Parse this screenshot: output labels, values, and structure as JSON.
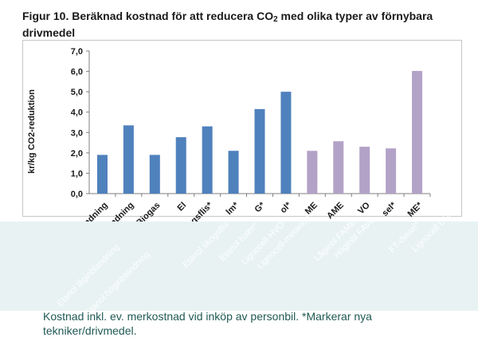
{
  "title": {
    "prefix": "Figur 10. Beräknad kostnad för att reducera CO",
    "subscript": "2",
    "suffix": " med olika typer av förnybara drivmedel"
  },
  "chart_data": {
    "type": "bar",
    "title": "",
    "xlabel": "",
    "ylabel": "kr/kg CO2-reduktion",
    "ylim": [
      0,
      7
    ],
    "yticks": [
      "0,0",
      "1,0",
      "2,0",
      "3,0",
      "4,0",
      "5,0",
      "6,0",
      "7,0"
    ],
    "grid": false,
    "categories": [
      "Etanol låginblandning",
      "Etanol höginblandning",
      "Biogas",
      "El",
      "Etanol skogsflis*",
      "Etanol halm*",
      "Lignocell-HVO*",
      "Lignocell-metanol*",
      "Låginbl FAME",
      "Höginbl FAME",
      "Höginbl HVO",
      "FT-diesel*",
      "Lignocell DME*"
    ],
    "visible_tick_labels": [
      "ndning",
      "landning",
      "Biogas",
      "El",
      "ogsflis*",
      "lm*",
      "G*",
      "ol*",
      "ME",
      "AME",
      "VO",
      "sel*",
      "ME*"
    ],
    "values": [
      1.9,
      3.35,
      1.9,
      2.77,
      3.3,
      2.1,
      4.15,
      5.0,
      2.1,
      2.57,
      2.3,
      2.22,
      6.02
    ],
    "colors": [
      "#4f81bd",
      "#4f81bd",
      "#4f81bd",
      "#4f81bd",
      "#4f81bd",
      "#4f81bd",
      "#4f81bd",
      "#4f81bd",
      "#b3a2c7",
      "#b3a2c7",
      "#b3a2c7",
      "#b3a2c7",
      "#b3a2c7"
    ],
    "overlay_labels": [
      "Etanol låginblandning",
      "Etanol höginblandning",
      "Etanol skogsflis*",
      "Etanol halm*",
      "Lignocell-HVO*",
      "Lignocell-metanol*",
      "Låginbl FAME",
      "Höginbl FAVO",
      "FT-diesel*",
      "Lignocell DME*"
    ]
  },
  "caption": "Kostnad inkl. ev. merkostnad vid inköp av personbil. *Markerar nya tekniker/drivmedel.",
  "colors": {
    "blue": "#4f81bd",
    "purple": "#b3a2c7",
    "overlay": "#e8f2f2",
    "caption": "#205a55"
  }
}
